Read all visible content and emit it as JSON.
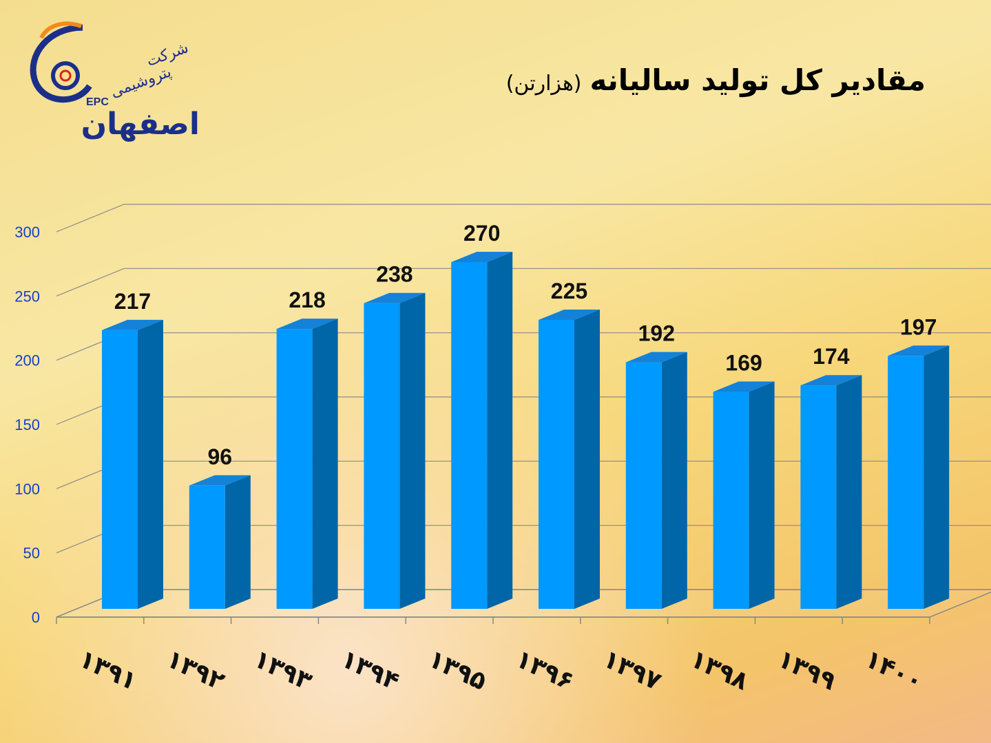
{
  "chart_data": {
    "type": "bar3d",
    "title": "مقادیر کل تولید سالیانه",
    "subtitle": "(هزارتن)",
    "logo": {
      "lines": [
        "شرکت",
        "پتروشیمی",
        "اصفهان"
      ],
      "abbr": "EPC"
    },
    "categories": [
      "۱۳۹۱",
      "۱۳۹۲",
      "۱۳۹۳",
      "۱۳۹۴",
      "۱۳۹۵",
      "۱۳۹۶",
      "۱۳۹۷",
      "۱۳۹۸",
      "۱۳۹۹",
      "۱۴۰۰"
    ],
    "values": [
      217,
      96,
      218,
      238,
      270,
      225,
      192,
      169,
      174,
      197
    ],
    "color": "#0099ff",
    "ylim": [
      0,
      300
    ],
    "yticks": [
      0,
      50,
      100,
      150,
      200,
      250,
      300
    ],
    "grid": true
  }
}
